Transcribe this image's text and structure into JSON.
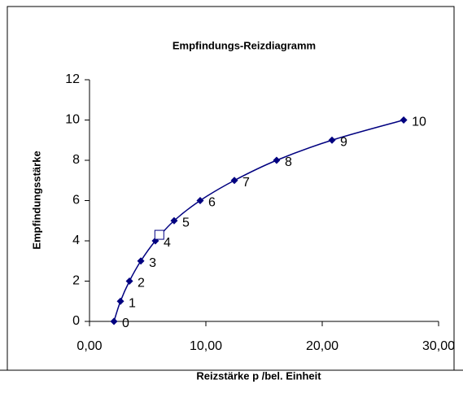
{
  "chart_data": {
    "type": "line",
    "title": "Empfindungs-Reizdiagramm",
    "x_label": "Reizstärke p /bel. Einheit",
    "y_label": "Empfindungsstärke",
    "xlim": [
      0,
      30
    ],
    "ylim": [
      0,
      12
    ],
    "xticks": [
      {
        "value": 0,
        "label": "0,00"
      },
      {
        "value": 10,
        "label": "10,00"
      },
      {
        "value": 20,
        "label": "20,00"
      },
      {
        "value": 30,
        "label": "30,00"
      }
    ],
    "yticks": [
      0,
      2,
      4,
      6,
      8,
      10,
      12
    ],
    "series": [
      {
        "color": "#000080",
        "marker": "diamond",
        "data_labels": true,
        "x": [
          2.1,
          2.66,
          3.43,
          4.41,
          5.66,
          7.27,
          9.51,
          12.45,
          16.08,
          20.84,
          27.0
        ],
        "values": [
          0,
          1,
          2,
          3,
          4,
          5,
          6,
          7,
          8,
          9,
          10
        ]
      },
      {
        "color": "#000080",
        "marker": "square-open",
        "x": [
          6.0
        ],
        "values": [
          4.3
        ]
      }
    ]
  }
}
